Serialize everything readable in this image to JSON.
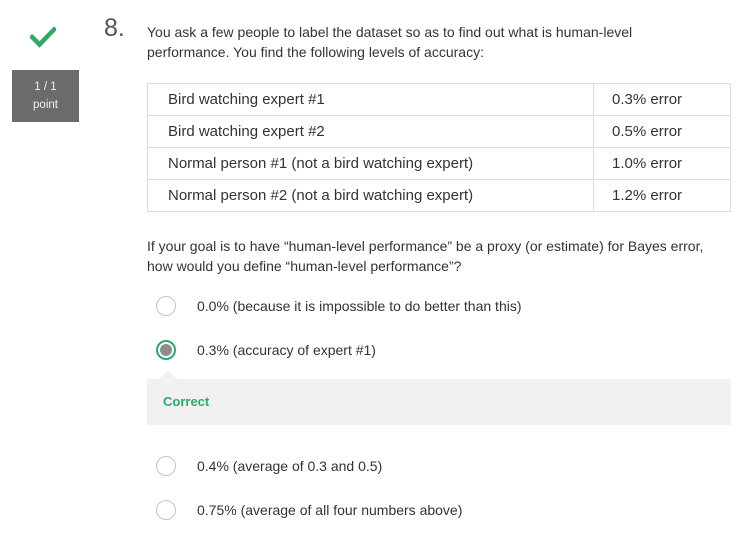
{
  "score": {
    "value": "1 / 1",
    "label": "point",
    "status_icon": "check-icon",
    "accent_color": "#2fa86a"
  },
  "question": {
    "number": "8.",
    "text": "You ask a few people to label the dataset so as to find out what is human-level performance. You find the following levels of accuracy:",
    "rows": [
      {
        "who": "Bird watching expert #1",
        "error": "0.3% error"
      },
      {
        "who": "Bird watching expert #2",
        "error": "0.5% error"
      },
      {
        "who": "Normal person #1 (not a bird watching expert)",
        "error": "1.0% error"
      },
      {
        "who": "Normal person #2 (not a bird watching expert)",
        "error": "1.2% error"
      }
    ],
    "prompt": "If your goal is to have “human-level performance” be a proxy (or estimate) for Bayes error, how would you define “human-level performance”?"
  },
  "options": [
    {
      "label": "0.0% (because it is impossible to do better than this)",
      "selected": false
    },
    {
      "label": "0.3% (accuracy of expert #1)",
      "selected": true
    },
    {
      "label": "0.4% (average of 0.3 and 0.5)",
      "selected": false
    },
    {
      "label": "0.75% (average of all four numbers above)",
      "selected": false
    }
  ],
  "feedback": {
    "text": "Correct"
  }
}
